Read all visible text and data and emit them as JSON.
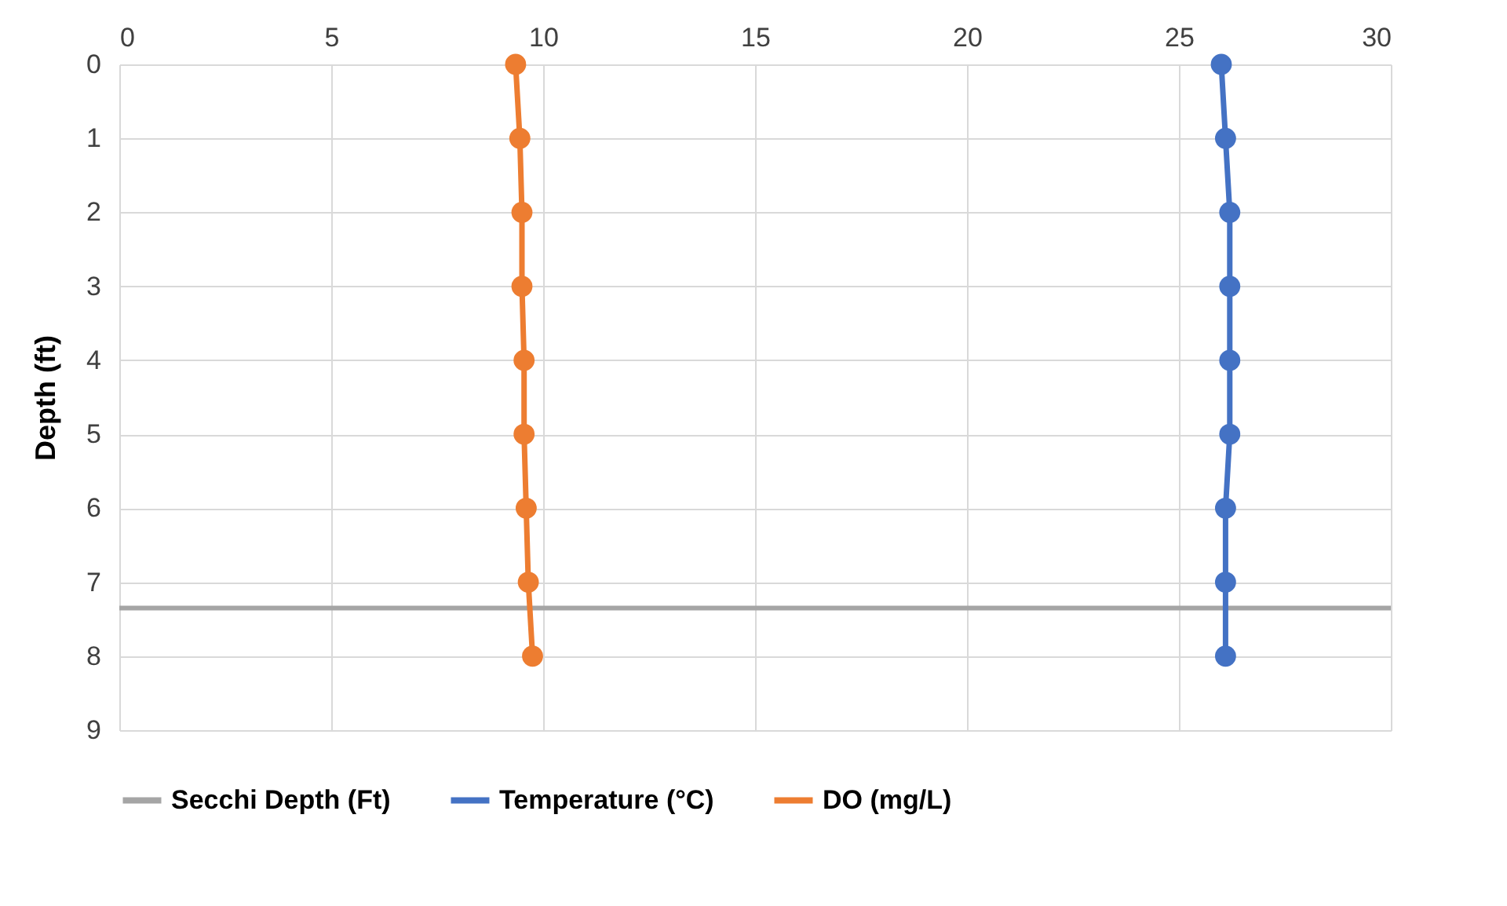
{
  "chart_data": {
    "type": "line",
    "ylabel": "Depth (ft)",
    "xlim": [
      0,
      30
    ],
    "xticks": [
      0,
      5,
      10,
      15,
      20,
      25,
      30
    ],
    "ylim": [
      9,
      0
    ],
    "yticks": [
      0,
      1,
      2,
      3,
      4,
      5,
      6,
      7,
      8,
      9
    ],
    "grid": true,
    "legend": "bottom",
    "marker": "circle",
    "ref_lines": [
      {
        "axis": "y",
        "value": 7.35,
        "label": "Secchi Depth (Ft)",
        "color": "#a5a5a5"
      }
    ],
    "series": [
      {
        "name": "Temperature (°C)",
        "color": "#4472c4",
        "x": [
          26.0,
          26.1,
          26.2,
          26.2,
          26.2,
          26.2,
          26.1,
          26.1,
          26.1
        ],
        "values": [
          0,
          1,
          2,
          3,
          4,
          5,
          6,
          7,
          8
        ]
      },
      {
        "name": "DO (mg/L)",
        "color": "#ed7d31",
        "x": [
          9.35,
          9.45,
          9.5,
          9.5,
          9.55,
          9.55,
          9.6,
          9.65,
          9.75
        ],
        "values": [
          0,
          1,
          2,
          3,
          4,
          5,
          6,
          7,
          8
        ]
      }
    ]
  }
}
